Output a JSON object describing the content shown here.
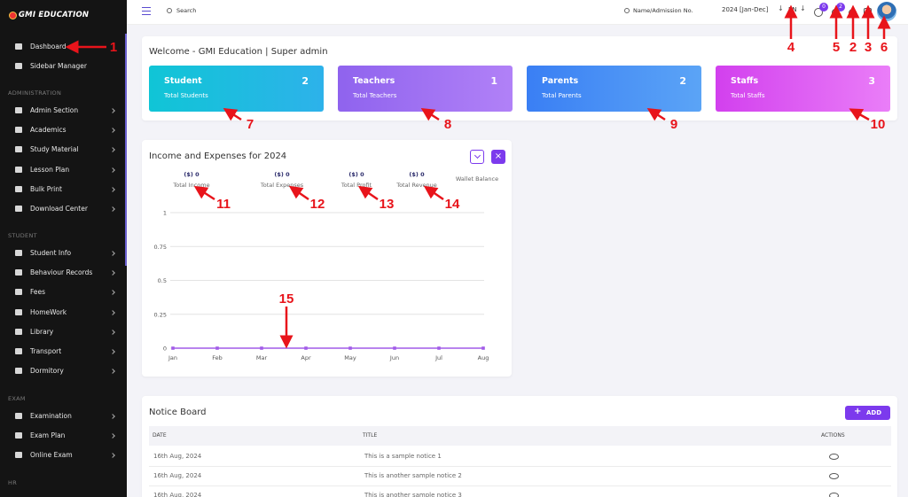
{
  "sidebar": {
    "logo": "GMI EDUCATION",
    "items": [
      "Dashboard",
      "Sidebar Manager"
    ],
    "sections": [
      {
        "title": "ADMINISTRATION",
        "items": [
          "Admin Section",
          "Academics",
          "Study Material",
          "Lesson Plan",
          "Bulk Print",
          "Download Center"
        ]
      },
      {
        "title": "STUDENT",
        "items": [
          "Student Info",
          "Behaviour Records",
          "Fees",
          "HomeWork",
          "Library",
          "Transport",
          "Dormitory"
        ]
      },
      {
        "title": "EXAM",
        "items": [
          "Examination",
          "Exam Plan",
          "Online Exam"
        ]
      },
      {
        "title": "HR",
        "items": []
      }
    ]
  },
  "topbar": {
    "search": "Search",
    "admission_search": "Name/Admission No.",
    "session": "2024 [Jan-Dec]",
    "language": "EN",
    "message_count": 0,
    "notification_count": 2
  },
  "welcome": "Welcome - GMI Education | Super admin",
  "cards": [
    {
      "title": "Student",
      "count": 2,
      "subtitle": "Total Students"
    },
    {
      "title": "Teachers",
      "count": 1,
      "subtitle": "Total Teachers"
    },
    {
      "title": "Parents",
      "count": 2,
      "subtitle": "Total Parents"
    },
    {
      "title": "Staffs",
      "count": 3,
      "subtitle": "Total Staffs"
    }
  ],
  "income_chart": {
    "title": "Income and Expenses for 2024",
    "summary": [
      {
        "value": "($) 0",
        "label": "Total Income"
      },
      {
        "value": "($) 0",
        "label": "Total Expenses"
      },
      {
        "value": "($) 0",
        "label": "Total Profit"
      },
      {
        "value": "($) 0",
        "label": "Total Revenue"
      },
      {
        "label": "Wallet Balance"
      }
    ],
    "chart": {
      "type": "line",
      "categories": [
        "Jan",
        "Feb",
        "Mar",
        "Apr",
        "May",
        "Jun",
        "Jul",
        "Aug"
      ],
      "values": [
        0,
        0,
        0,
        0,
        0,
        0,
        0,
        0
      ],
      "color": "#a25be8",
      "ylim": [
        0,
        1
      ],
      "yticks": [
        0,
        0.25,
        0.5,
        0.75,
        1
      ],
      "grid": true
    }
  },
  "notice_board": {
    "title": "Notice Board",
    "add": "ADD",
    "columns": [
      "DATE",
      "TITLE",
      "ACTIONS"
    ],
    "rows": [
      [
        "16th Aug, 2024",
        "This is a sample notice 1"
      ],
      [
        "16th Aug, 2024",
        "This is another sample notice 2"
      ],
      [
        "16th Aug, 2024",
        "This is another sample notice 3"
      ]
    ]
  },
  "annotations": [
    1,
    2,
    3,
    4,
    5,
    6,
    7,
    8,
    9,
    10,
    11,
    12,
    13,
    14,
    15
  ]
}
